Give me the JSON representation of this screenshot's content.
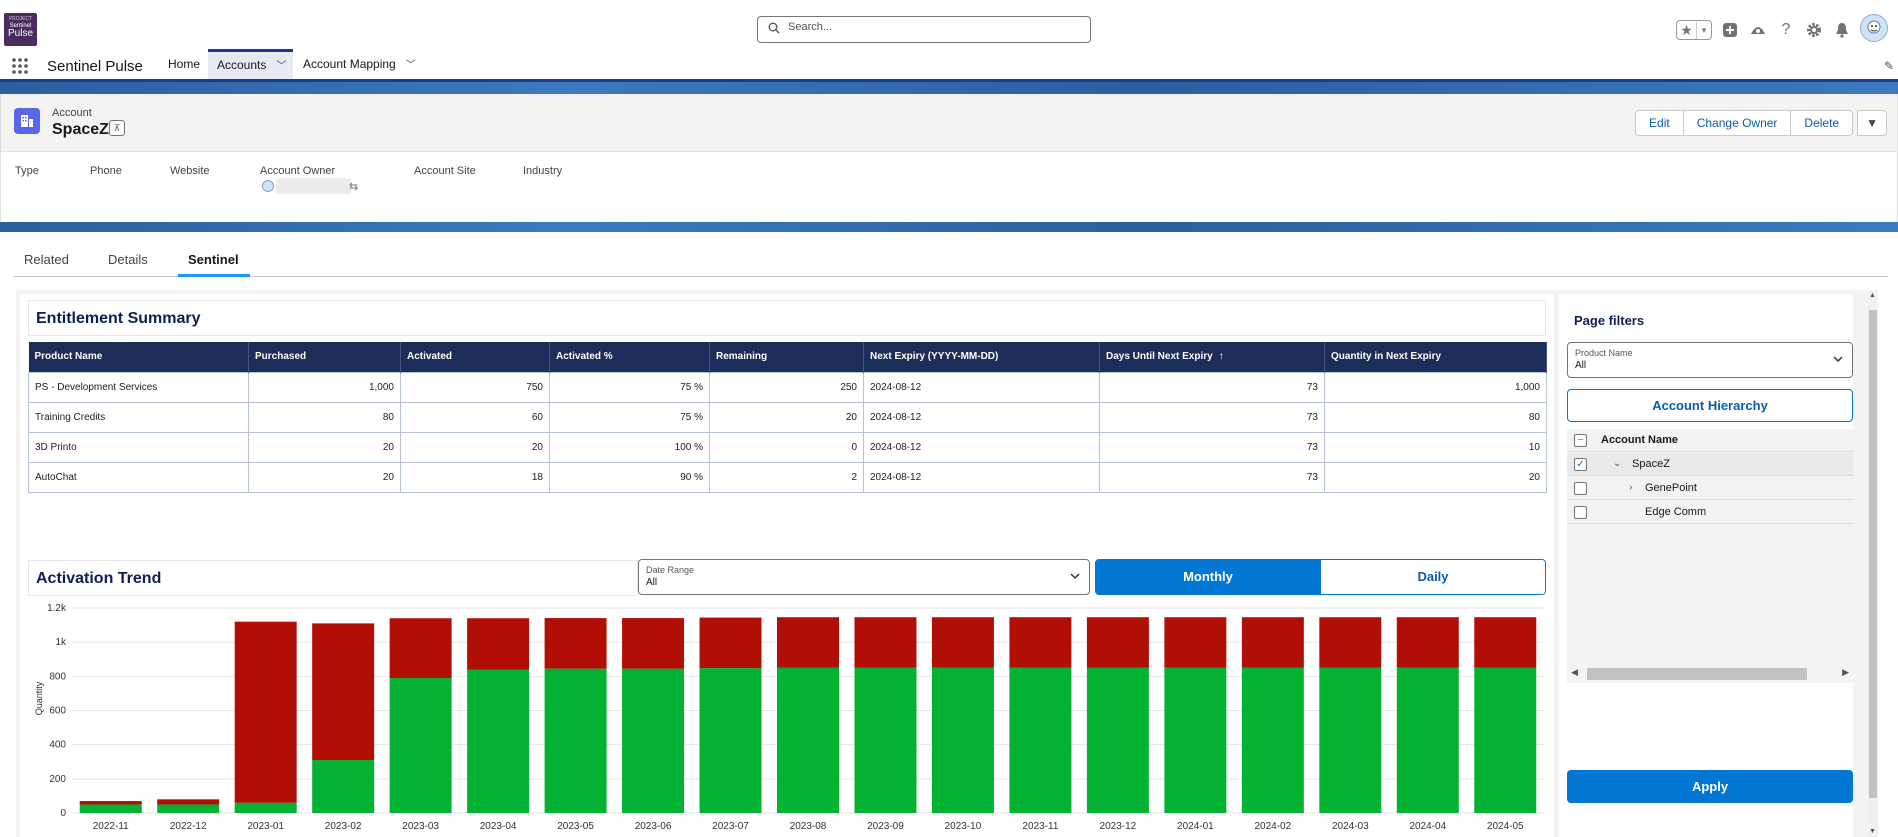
{
  "global_header": {
    "logo": {
      "line1": "PROJECT",
      "line2": "Sentinel",
      "line3": "Pulse"
    },
    "search_placeholder": "Search...",
    "icons": [
      "favorites-star-icon",
      "add-icon",
      "trailhead-icon",
      "help-icon",
      "setup-gear-icon",
      "notification-bell-icon",
      "user-avatar"
    ]
  },
  "nav": {
    "app_name": "Sentinel Pulse",
    "items": [
      {
        "label": "Home",
        "active": false
      },
      {
        "label": "Accounts",
        "active": true
      },
      {
        "label": "Account Mapping",
        "active": false
      }
    ]
  },
  "record": {
    "object_type": "Account",
    "name": "SpaceZ",
    "buttons": {
      "edit": "Edit",
      "change_owner": "Change Owner",
      "delete": "Delete"
    },
    "fields": [
      {
        "label": "Type"
      },
      {
        "label": "Phone"
      },
      {
        "label": "Website"
      },
      {
        "label": "Account Owner"
      },
      {
        "label": "Account Site"
      },
      {
        "label": "Industry"
      }
    ]
  },
  "tabs": [
    "Related",
    "Details",
    "Sentinel"
  ],
  "entitlement": {
    "title": "Entitlement Summary",
    "columns": [
      "Product Name",
      "Purchased",
      "Activated",
      "Activated %",
      "Remaining",
      "Next Expiry (YYYY-MM-DD)",
      "Days Until Next Expiry",
      "Quantity in Next Expiry"
    ],
    "rows": [
      [
        "PS - Development Services",
        "1,000",
        "750",
        "75 %",
        "250",
        "2024-08-12",
        "73",
        "1,000"
      ],
      [
        "Training Credits",
        "80",
        "60",
        "75 %",
        "20",
        "2024-08-12",
        "73",
        "80"
      ],
      [
        "3D Printo",
        "20",
        "20",
        "100 %",
        "0",
        "2024-08-12",
        "73",
        "10"
      ],
      [
        "AutoChat",
        "20",
        "18",
        "90 %",
        "2",
        "2024-08-12",
        "73",
        "20"
      ]
    ]
  },
  "activation_trend": {
    "title": "Activation Trend",
    "date_range": {
      "label": "Date Range",
      "value": "All"
    },
    "toggle": {
      "monthly": "Monthly",
      "daily": "Daily",
      "selected": "Monthly"
    }
  },
  "chart_data": {
    "type": "bar",
    "stacked": true,
    "ylabel": "Quantity",
    "xlabel": "",
    "ylim": [
      0,
      1200
    ],
    "yticks": [
      "0",
      "200",
      "400",
      "600",
      "800",
      "1k",
      "1.2k"
    ],
    "ytick_values": [
      0,
      200,
      400,
      600,
      800,
      1000,
      1200
    ],
    "grid": true,
    "colors": {
      "activated": "#04b233",
      "remaining": "#b10e05"
    },
    "categories": [
      "2022-11",
      "2022-12",
      "2023-01",
      "2023-02",
      "2023-03",
      "2023-04",
      "2023-05",
      "2023-06",
      "2023-07",
      "2023-08",
      "2023-09",
      "2023-10",
      "2023-11",
      "2023-12",
      "2024-01",
      "2024-02",
      "2024-03",
      "2024-04",
      "2024-05"
    ],
    "series": [
      {
        "values": [
          50,
          50,
          60,
          310,
          790,
          840,
          845,
          845,
          848,
          850,
          850,
          850,
          850,
          850,
          850,
          850,
          850,
          850,
          850
        ]
      },
      {
        "values": [
          20,
          30,
          1060,
          800,
          350,
          300,
          296,
          296,
          296,
          296,
          296,
          296,
          296,
          296,
          296,
          296,
          296,
          296,
          296
        ]
      }
    ]
  },
  "filters": {
    "title": "Page filters",
    "product_name": {
      "label": "Product Name",
      "value": "All"
    },
    "hierarchy_button": "Account Hierarchy",
    "tree_header": "Account Name",
    "tree_items": [
      {
        "label": "SpaceZ",
        "checked": true,
        "expanded": true
      },
      {
        "label": "GenePoint",
        "checked": false,
        "expanded": false
      },
      {
        "label": "Edge Comm",
        "checked": false,
        "expanded": false
      }
    ],
    "apply_button": "Apply"
  }
}
